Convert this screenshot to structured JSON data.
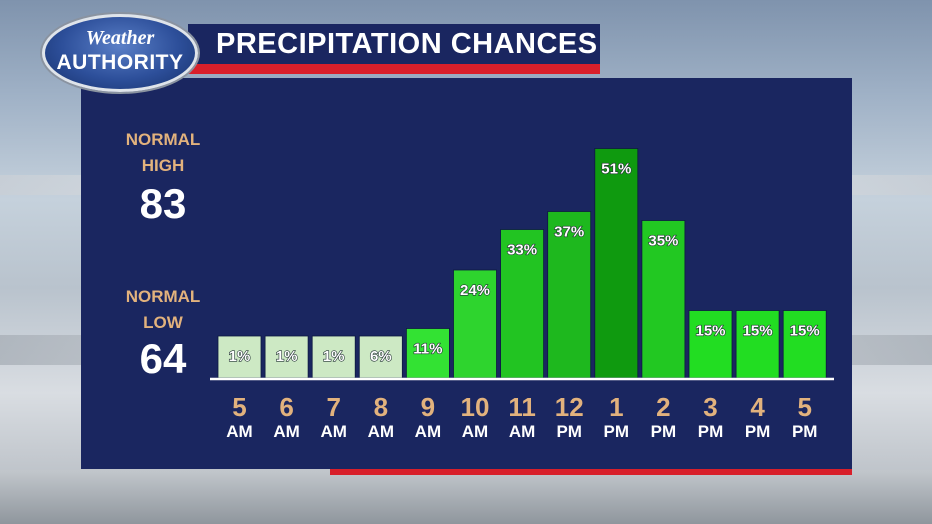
{
  "logo": {
    "line1": "Weather",
    "line2": "AUTHORITY"
  },
  "title": "PRECIPITATION CHANCES",
  "normal_high": {
    "label_1": "NORMAL",
    "label_2": "HIGH",
    "value": "83"
  },
  "normal_low": {
    "label_1": "NORMAL",
    "label_2": "LOW",
    "value": "64"
  },
  "colors": {
    "panel": "#1a2660",
    "accent_red": "#d81f2a",
    "tick_gold": "#e2b27d"
  },
  "chart_data": {
    "type": "bar",
    "categories": [
      "5 AM",
      "6 AM",
      "7 AM",
      "8 AM",
      "9 AM",
      "10 AM",
      "11 AM",
      "12 PM",
      "1 PM",
      "2 PM",
      "3 PM",
      "4 PM",
      "5 PM"
    ],
    "hours": [
      "5",
      "6",
      "7",
      "8",
      "9",
      "10",
      "11",
      "12",
      "1",
      "2",
      "3",
      "4",
      "5"
    ],
    "ampm": [
      "AM",
      "AM",
      "AM",
      "AM",
      "AM",
      "AM",
      "AM",
      "PM",
      "PM",
      "PM",
      "PM",
      "PM",
      "PM"
    ],
    "values": [
      1,
      1,
      1,
      6,
      11,
      24,
      33,
      37,
      51,
      35,
      15,
      15,
      15
    ],
    "value_labels": [
      "1%",
      "1%",
      "1%",
      "6%",
      "11%",
      "24%",
      "33%",
      "37%",
      "51%",
      "35%",
      "15%",
      "15%",
      "15%"
    ],
    "title": "PRECIPITATION CHANCES",
    "ylim": [
      0,
      60
    ],
    "bar_colors": [
      "#cde9c4",
      "#cde9c4",
      "#cde9c4",
      "#cde9c4",
      "#33e233",
      "#2ed42e",
      "#22c422",
      "#1eb81e",
      "#0f9a0f",
      "#22c822",
      "#22dd22",
      "#22dd22",
      "#22dd22"
    ]
  }
}
